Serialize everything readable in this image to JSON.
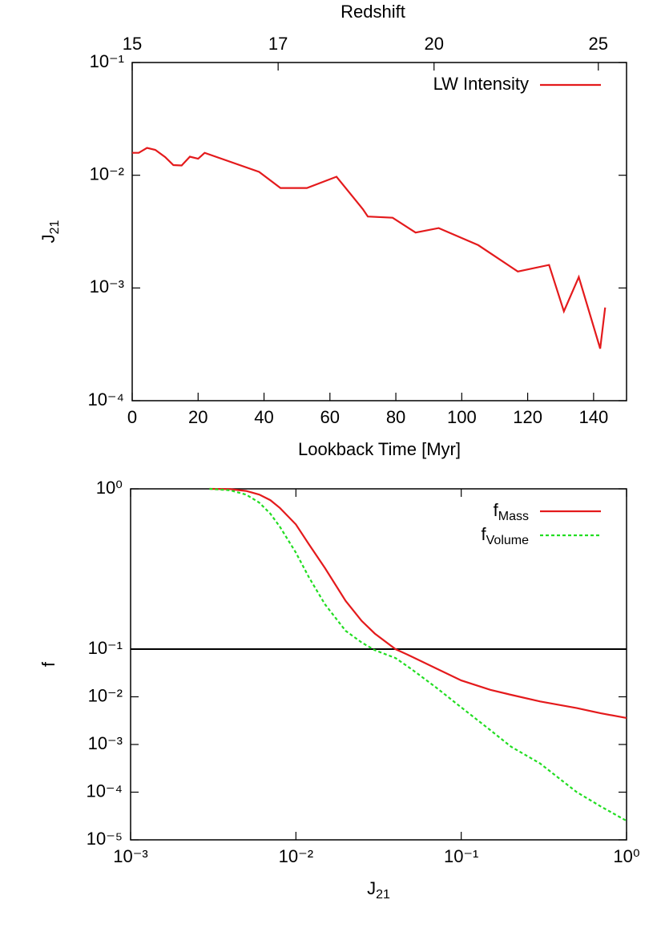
{
  "chart_data": [
    {
      "type": "line",
      "x2label": "Redshift",
      "x2ticks": [
        15,
        17,
        20,
        25
      ],
      "xlabel": "Lookback Time [Myr]",
      "ylabel": {
        "text": "J",
        "sub": "21"
      },
      "xlim": [
        0,
        150
      ],
      "xticks": [
        0,
        20,
        40,
        60,
        80,
        100,
        120,
        140
      ],
      "ylim": [
        0.0001,
        0.1
      ],
      "log_y": true,
      "yticks": [
        {
          "value": 0.1,
          "label": "10⁻¹"
        },
        {
          "value": 0.01,
          "label": "10⁻²"
        },
        {
          "value": 0.001,
          "label": "10⁻³"
        },
        {
          "value": 0.0001,
          "label": "10⁻⁴"
        }
      ],
      "legend": "upper right",
      "x": [
        0,
        2,
        4.5,
        7,
        10,
        12.5,
        15,
        17.5,
        20,
        22,
        38.5,
        45,
        53,
        62,
        70,
        71.5,
        79,
        86,
        93,
        105,
        117,
        126.5,
        131,
        135.5,
        142,
        143.5
      ],
      "series": [
        {
          "name": {
            "text": "LW Intensity"
          },
          "color": "#e41a1c",
          "dash": false,
          "values": [
            0.0158,
            0.0158,
            0.0175,
            0.0168,
            0.0145,
            0.0123,
            0.0122,
            0.0146,
            0.014,
            0.0158,
            0.0107,
            0.0077,
            0.0077,
            0.0097,
            0.005,
            0.0043,
            0.0042,
            0.0031,
            0.0034,
            0.0024,
            0.0014,
            0.0016,
            0.00062,
            0.00125,
            0.00029,
            0.00067
          ]
        }
      ]
    },
    {
      "type": "line",
      "xlabel": {
        "text": "J",
        "sub": "21"
      },
      "ylabel": {
        "text": "f"
      },
      "log_x": true,
      "log_y": true,
      "xlim": [
        0.001,
        1
      ],
      "xticks": [
        {
          "value": 0.001,
          "label": "10⁻³"
        },
        {
          "value": 0.01,
          "label": "10⁻²"
        },
        {
          "value": 0.1,
          "label": "10⁻¹"
        },
        {
          "value": 1,
          "label": "10⁰"
        }
      ],
      "ylim": [
        1e-05,
        1
      ],
      "ybreak": 0.1,
      "yticks": [
        {
          "value": 1,
          "label": "10⁰"
        },
        {
          "value": 0.1,
          "label": "10⁻¹"
        },
        {
          "value": 0.01,
          "label": "10⁻²"
        },
        {
          "value": 0.001,
          "label": "10⁻³"
        },
        {
          "value": 0.0001,
          "label": "10⁻⁴"
        },
        {
          "value": 1e-05,
          "label": "10⁻⁵"
        }
      ],
      "legend": "upper right",
      "x": [
        0.003,
        0.004,
        0.005,
        0.006,
        0.007,
        0.008,
        0.01,
        0.012,
        0.015,
        0.02,
        0.025,
        0.03,
        0.04,
        0.05,
        0.07,
        0.1,
        0.15,
        0.2,
        0.3,
        0.5,
        0.7,
        1
      ],
      "series": [
        {
          "name": {
            "text": "f",
            "sub": "Mass"
          },
          "color": "#e41a1c",
          "dash": false,
          "values": [
            1,
            0.995,
            0.97,
            0.92,
            0.85,
            0.76,
            0.6,
            0.45,
            0.32,
            0.2,
            0.15,
            0.125,
            0.1,
            0.07,
            0.04,
            0.022,
            0.014,
            0.011,
            0.008,
            0.0058,
            0.0045,
            0.0036
          ]
        },
        {
          "name": {
            "text": "f",
            "sub": "Volume"
          },
          "color": "#22dd22",
          "dash": true,
          "values": [
            1,
            0.98,
            0.92,
            0.82,
            0.7,
            0.58,
            0.4,
            0.28,
            0.19,
            0.13,
            0.11,
            0.095,
            0.065,
            0.038,
            0.016,
            0.006,
            0.002,
            0.0009,
            0.0004,
            0.0001,
            5e-05,
            2.5e-05
          ]
        }
      ]
    }
  ]
}
